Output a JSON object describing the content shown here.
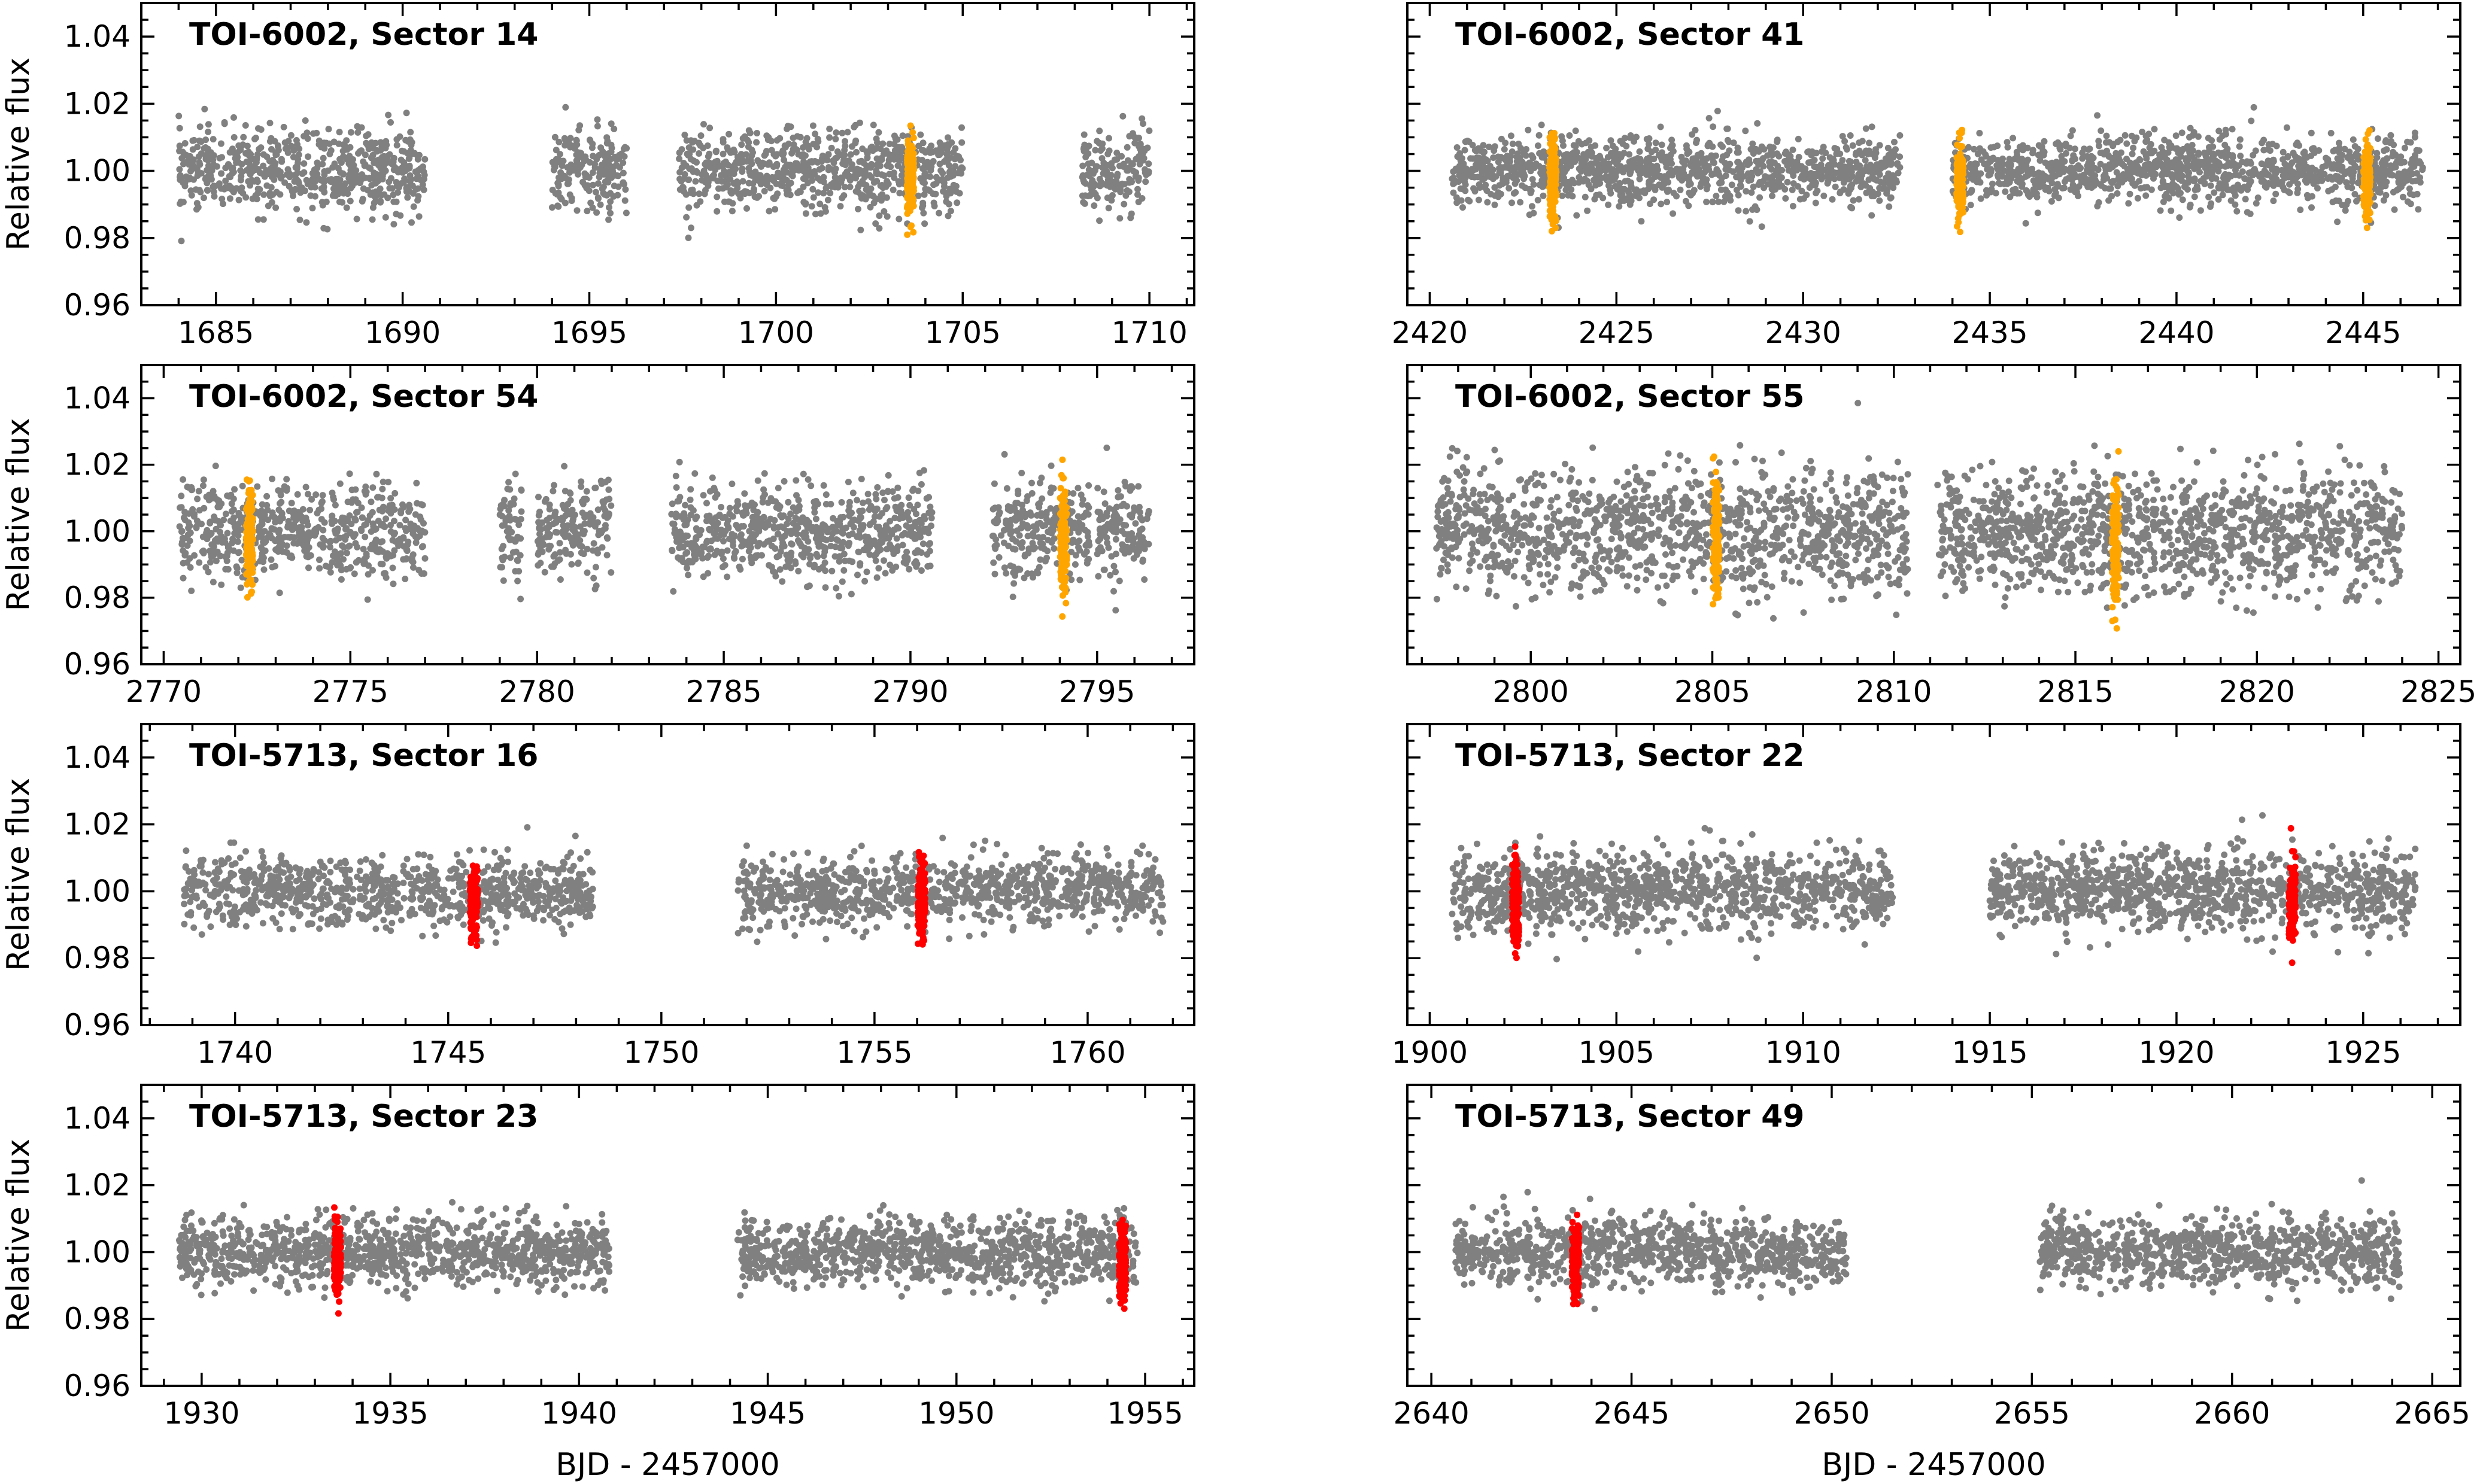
{
  "colors": {
    "baseline": "#808080",
    "transit_toi6002": "#FFA500",
    "transit_toi5713": "#FF0000",
    "frame": "#000000"
  },
  "chart_data": [
    {
      "type": "scatter",
      "title": "TOI-6002, Sector 14",
      "xlabel": "",
      "ylabel": "Relative flux",
      "xlim": [
        1683,
        1711.2
      ],
      "ylim": [
        0.96,
        1.05
      ],
      "xticks": [
        "1685",
        "1690",
        "1695",
        "1700",
        "1705",
        "1710"
      ],
      "yticks": [
        "0.96",
        "0.98",
        "1.00",
        "1.02",
        "1.04"
      ],
      "baseline_segments": [
        [
          1684,
          1690.6
        ],
        [
          1694,
          1696
        ],
        [
          1697.4,
          1705
        ],
        [
          1708.2,
          1710
        ]
      ],
      "baseline_scatter": 0.006,
      "transit_times": [
        1703.6
      ],
      "transit_color": "orange"
    },
    {
      "type": "scatter",
      "title": "TOI-6002, Sector 41",
      "xlabel": "",
      "ylabel": "",
      "xlim": [
        2419.4,
        2447.6
      ],
      "ylim": [
        0.96,
        1.05
      ],
      "xticks": [
        "2420",
        "2425",
        "2430",
        "2435",
        "2440",
        "2445"
      ],
      "yticks": [
        "0.96",
        "0.98",
        "1.00",
        "1.02",
        "1.04"
      ],
      "baseline_segments": [
        [
          2420.6,
          2432.6
        ],
        [
          2434,
          2446.6
        ]
      ],
      "baseline_scatter": 0.005,
      "transit_times": [
        2423.3,
        2434.2,
        2445.1
      ],
      "transit_color": "orange"
    },
    {
      "type": "scatter",
      "title": "TOI-6002, Sector 54",
      "xlabel": "",
      "ylabel": "Relative flux",
      "xlim": [
        2769.4,
        2797.6
      ],
      "ylim": [
        0.96,
        1.05
      ],
      "xticks": [
        "2770",
        "2775",
        "2780",
        "2785",
        "2790",
        "2795"
      ],
      "yticks": [
        "0.96",
        "0.98",
        "1.00",
        "1.02",
        "1.04"
      ],
      "baseline_segments": [
        [
          2770.4,
          2777
        ],
        [
          2779,
          2779.6
        ],
        [
          2780,
          2782
        ],
        [
          2783.6,
          2790.6
        ],
        [
          2792.2,
          2794.8
        ],
        [
          2795,
          2796.4
        ]
      ],
      "baseline_scatter": 0.007,
      "transit_times": [
        2772.3,
        2794.1
      ],
      "transit_color": "orange"
    },
    {
      "type": "scatter",
      "title": "TOI-6002, Sector 55",
      "xlabel": "",
      "ylabel": "",
      "xlim": [
        2796.6,
        2825.6
      ],
      "ylim": [
        0.96,
        1.05
      ],
      "xticks": [
        "2800",
        "2805",
        "2810",
        "2815",
        "2820",
        "2825"
      ],
      "yticks": [
        "0.96",
        "0.98",
        "1.00",
        "1.02",
        "1.04"
      ],
      "baseline_segments": [
        [
          2797.4,
          2810.4
        ],
        [
          2811.2,
          2824
        ]
      ],
      "baseline_scatter": 0.009,
      "transit_times": [
        2805.1,
        2816.1
      ],
      "transit_color": "orange"
    },
    {
      "type": "scatter",
      "title": "TOI-5713, Sector 16",
      "xlabel": "",
      "ylabel": "Relative flux",
      "xlim": [
        1737.8,
        1762.5
      ],
      "ylim": [
        0.96,
        1.05
      ],
      "xticks": [
        "1740",
        "1745",
        "1750",
        "1755",
        "1760"
      ],
      "yticks": [
        "0.96",
        "0.98",
        "1.00",
        "1.02",
        "1.04"
      ],
      "baseline_segments": [
        [
          1738.8,
          1748.4
        ],
        [
          1751.8,
          1761.8
        ]
      ],
      "baseline_scatter": 0.005,
      "transit_times": [
        1745.6,
        1756.1
      ],
      "transit_color": "red"
    },
    {
      "type": "scatter",
      "title": "TOI-5713, Sector 22",
      "xlabel": "",
      "ylabel": "",
      "xlim": [
        1899.4,
        1927.6
      ],
      "ylim": [
        0.96,
        1.05
      ],
      "xticks": [
        "1900",
        "1905",
        "1910",
        "1915",
        "1920",
        "1925"
      ],
      "yticks": [
        "0.96",
        "0.98",
        "1.00",
        "1.02",
        "1.04"
      ],
      "baseline_segments": [
        [
          1900.6,
          1912.4
        ],
        [
          1915,
          1926.4
        ]
      ],
      "baseline_scatter": 0.006,
      "transit_times": [
        1902.3,
        1923.1
      ],
      "transit_color": "red"
    },
    {
      "type": "scatter",
      "title": "TOI-5713, Sector 23",
      "xlabel": "BJD - 2457000",
      "ylabel": "Relative flux",
      "xlim": [
        1928.4,
        1956.3
      ],
      "ylim": [
        0.96,
        1.05
      ],
      "xticks": [
        "1930",
        "1935",
        "1940",
        "1945",
        "1950",
        "1955"
      ],
      "yticks": [
        "0.96",
        "0.98",
        "1.00",
        "1.02",
        "1.04"
      ],
      "baseline_segments": [
        [
          1929.4,
          1940.8
        ],
        [
          1944.2,
          1954.8
        ]
      ],
      "baseline_scatter": 0.005,
      "transit_times": [
        1933.6,
        1954.4
      ],
      "transit_color": "red"
    },
    {
      "type": "scatter",
      "title": "TOI-5713, Sector 49",
      "xlabel": "BJD - 2457000",
      "ylabel": "",
      "xlim": [
        2639.4,
        2665.7
      ],
      "ylim": [
        0.96,
        1.05
      ],
      "xticks": [
        "2640",
        "2645",
        "2650",
        "2655",
        "2660",
        "2665"
      ],
      "yticks": [
        "0.96",
        "0.98",
        "1.00",
        "1.02",
        "1.04"
      ],
      "baseline_segments": [
        [
          2640.6,
          2650.4
        ],
        [
          2655.2,
          2664.2
        ]
      ],
      "baseline_scatter": 0.005,
      "transit_times": [
        2643.6
      ],
      "transit_color": "red"
    }
  ]
}
